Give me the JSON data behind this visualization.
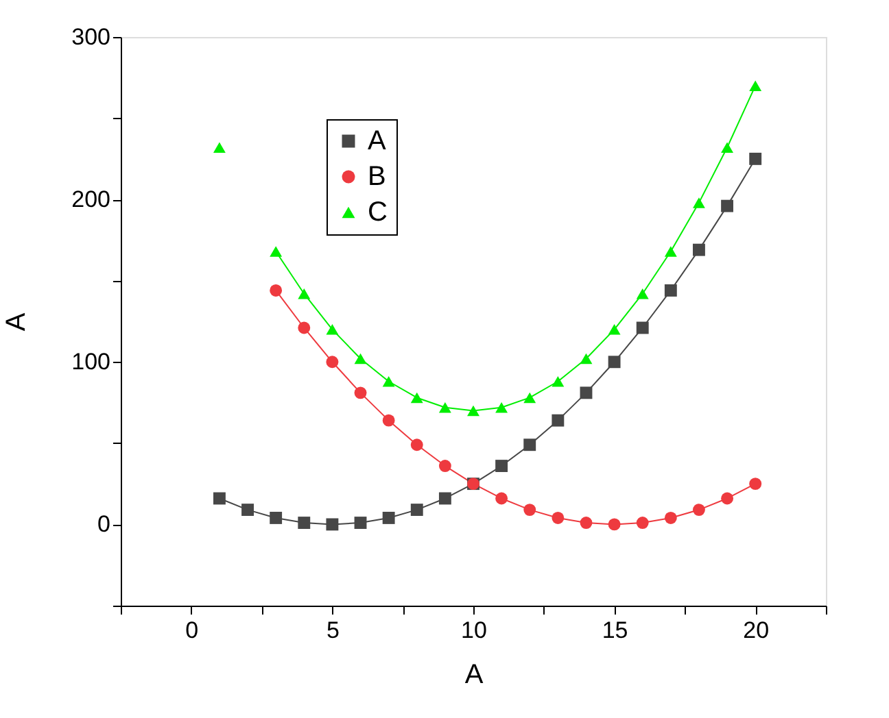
{
  "chart_data": {
    "type": "line",
    "xlabel": "A",
    "ylabel": "A",
    "x": [
      1,
      2,
      3,
      4,
      5,
      6,
      7,
      8,
      9,
      10,
      11,
      12,
      13,
      14,
      15,
      16,
      17,
      18,
      19,
      20
    ],
    "series": [
      {
        "name": "A",
        "color": "#474747",
        "marker": "square",
        "values": [
          16,
          9,
          4,
          1,
          0,
          1,
          4,
          9,
          16,
          25,
          36,
          49,
          64,
          81,
          100,
          121,
          144,
          169,
          196,
          225
        ]
      },
      {
        "name": "B",
        "color": "#ee3a3f",
        "marker": "circle",
        "values": [
          null,
          null,
          144,
          121,
          100,
          81,
          64,
          49,
          36,
          25,
          16,
          9,
          4,
          1,
          0,
          1,
          4,
          9,
          16,
          25
        ]
      },
      {
        "name": "C",
        "color": "#00ee00",
        "marker": "triangle",
        "values": [
          232,
          null,
          168,
          142,
          120,
          102,
          88,
          78,
          72,
          70,
          72,
          78,
          88,
          102,
          120,
          142,
          168,
          198,
          232,
          270
        ]
      }
    ],
    "xlim": [
      -2.5,
      22.5
    ],
    "xticks": [
      {
        "value": -2.5,
        "label": null
      },
      0,
      {
        "value": 2.5,
        "label": null
      },
      5,
      {
        "value": 7.5,
        "label": null
      },
      10,
      {
        "value": 12.5,
        "label": null
      },
      15,
      {
        "value": 17.5,
        "label": null
      },
      20,
      {
        "value": 22.5,
        "label": null
      }
    ],
    "ylim": [
      -50,
      300
    ],
    "yticks": [
      {
        "value": -50,
        "label": null
      },
      0,
      {
        "value": 50,
        "label": null
      },
      100,
      {
        "value": 150,
        "label": null
      },
      200,
      {
        "value": 250,
        "label": null
      },
      300
    ],
    "grid": false,
    "legend": "top left",
    "line_style": "solid"
  }
}
